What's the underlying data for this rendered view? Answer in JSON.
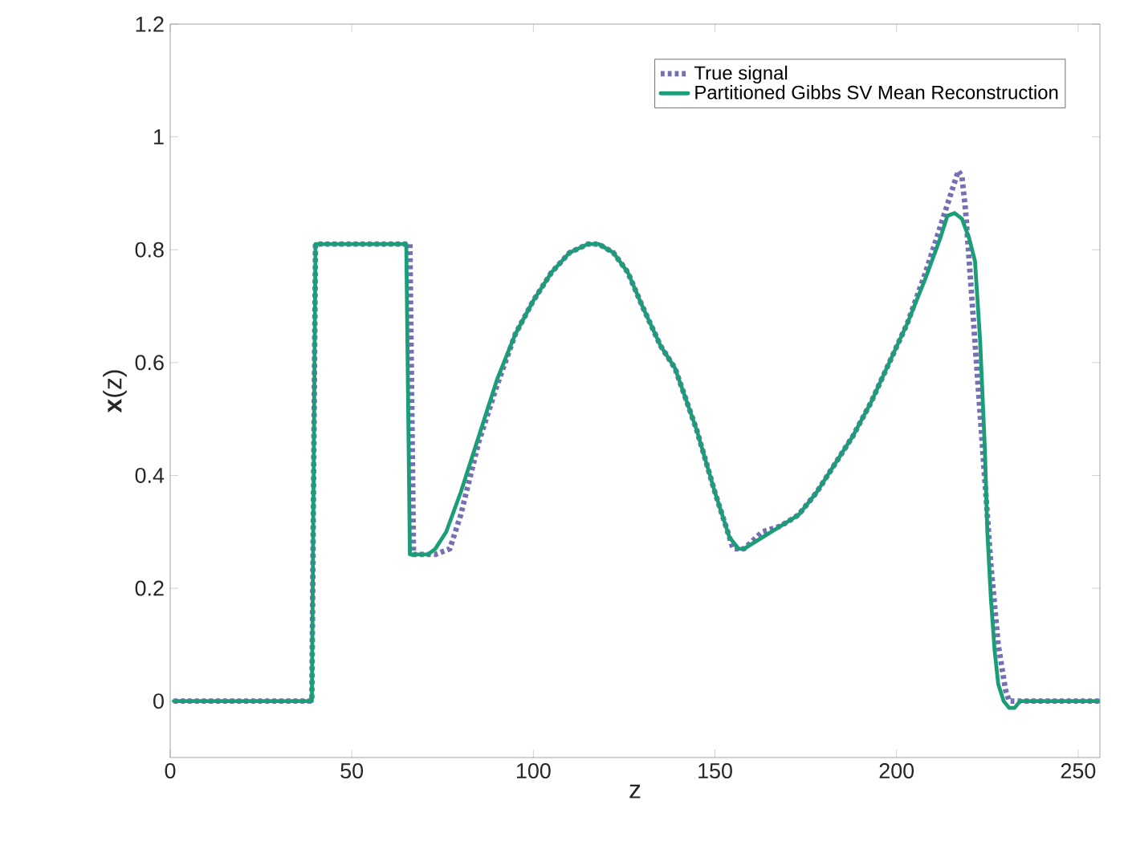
{
  "chart_data": {
    "type": "line",
    "xlabel": "z",
    "ylabel": "**x**(z)",
    "xlim": [
      0,
      256
    ],
    "ylim": [
      -0.1,
      1.2
    ],
    "xticks": [
      0,
      50,
      100,
      150,
      200,
      250
    ],
    "yticks": [
      0,
      0.2,
      0.4,
      0.6,
      0.8,
      1,
      1.2
    ],
    "grid": false,
    "legend": "top right",
    "series": [
      {
        "name": "True signal",
        "color": "#7570b3",
        "line_style": "dotted",
        "x": [
          1,
          39,
          40,
          66,
          67,
          73,
          77,
          80,
          85,
          90,
          95,
          100,
          105,
          110,
          115,
          118,
          122,
          126,
          130,
          135,
          139,
          145,
          150,
          154,
          155,
          158,
          163,
          168,
          173,
          178,
          183,
          188,
          193,
          198,
          203,
          208,
          212,
          215,
          217,
          218,
          219,
          220,
          222,
          224,
          226,
          228,
          230,
          231,
          256
        ],
        "values": [
          0,
          0,
          0.81,
          0.81,
          0.26,
          0.26,
          0.27,
          0.33,
          0.46,
          0.56,
          0.65,
          0.71,
          0.76,
          0.795,
          0.81,
          0.81,
          0.795,
          0.76,
          0.7,
          0.63,
          0.59,
          0.48,
          0.37,
          0.29,
          0.27,
          0.27,
          0.3,
          0.31,
          0.33,
          0.37,
          0.42,
          0.47,
          0.53,
          0.6,
          0.67,
          0.76,
          0.84,
          0.9,
          0.94,
          0.93,
          0.87,
          0.78,
          0.6,
          0.42,
          0.24,
          0.1,
          0.02,
          0,
          0
        ]
      },
      {
        "name": "Partitioned Gibbs SV Mean Reconstruction",
        "color": "#1b9e77",
        "line_style": "solid",
        "x": [
          1,
          39,
          40,
          65,
          66,
          71,
          73,
          76,
          80,
          85,
          90,
          95,
          100,
          105,
          110,
          115,
          118,
          122,
          126,
          130,
          135,
          139,
          145,
          150,
          154,
          156.5,
          158,
          163,
          168,
          173,
          178,
          183,
          188,
          193,
          198,
          203,
          208,
          212,
          214,
          216,
          218,
          220,
          221.6,
          223,
          224.3,
          225,
          226,
          227,
          228,
          229.5,
          231,
          232.5,
          234,
          256
        ],
        "values": [
          0,
          0,
          0.81,
          0.81,
          0.26,
          0.26,
          0.27,
          0.3,
          0.37,
          0.47,
          0.57,
          0.65,
          0.71,
          0.76,
          0.795,
          0.81,
          0.81,
          0.795,
          0.76,
          0.7,
          0.63,
          0.59,
          0.48,
          0.37,
          0.29,
          0.27,
          0.27,
          0.29,
          0.31,
          0.33,
          0.37,
          0.42,
          0.47,
          0.53,
          0.6,
          0.67,
          0.75,
          0.82,
          0.86,
          0.865,
          0.855,
          0.82,
          0.78,
          0.64,
          0.45,
          0.3,
          0.18,
          0.09,
          0.03,
          0,
          -0.012,
          -0.012,
          0,
          0
        ]
      }
    ]
  }
}
